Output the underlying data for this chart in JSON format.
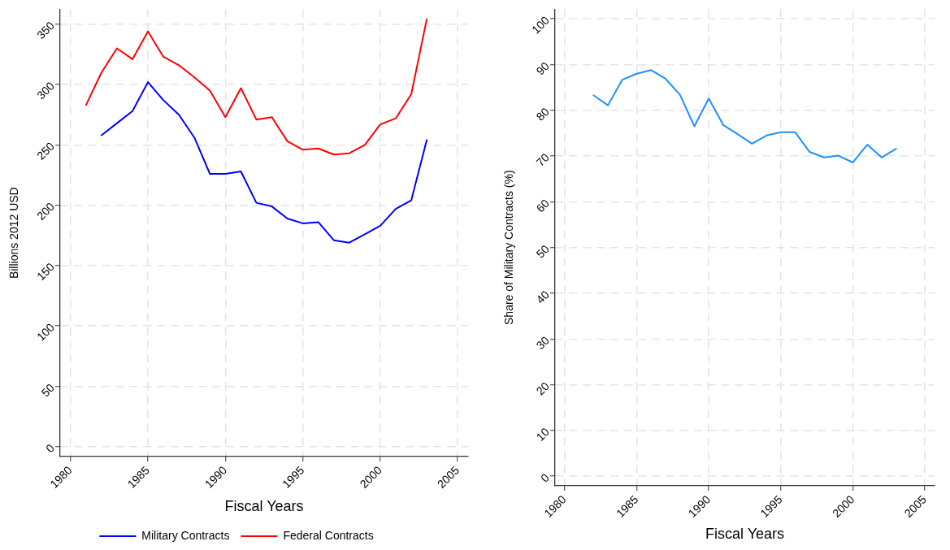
{
  "chart_data": [
    {
      "type": "line",
      "xlabel": "Fiscal Years",
      "ylabel": "Billions 2012 USD",
      "x": [
        1981,
        1982,
        1983,
        1984,
        1985,
        1986,
        1987,
        1988,
        1989,
        1990,
        1991,
        1992,
        1993,
        1994,
        1995,
        1996,
        1997,
        1998,
        1999,
        2000,
        2001,
        2002,
        2003
      ],
      "series": [
        {
          "name": "Military Contracts",
          "color": "#0000ff",
          "values": [
            null,
            258,
            268,
            278,
            302,
            287,
            275,
            256,
            226,
            226,
            228,
            202,
            199,
            189,
            185,
            186,
            171,
            169,
            176,
            183,
            197,
            204,
            254
          ]
        },
        {
          "name": "Federal Contracts",
          "color": "#ff0000",
          "values": [
            283,
            310,
            330,
            321,
            344,
            323,
            316,
            306,
            295,
            273,
            297,
            271,
            273,
            253,
            246,
            247,
            242,
            243,
            250,
            267,
            272,
            292,
            354
          ]
        }
      ],
      "xlim": [
        1979.33,
        2005.67
      ],
      "xticks": [
        1980,
        1985,
        1990,
        1995,
        2000,
        2005
      ],
      "ylim": [
        -8.3,
        362.4
      ],
      "yticks": [
        0,
        50,
        100,
        150,
        200,
        250,
        300,
        350
      ],
      "grid": true,
      "legend": "bottom"
    },
    {
      "type": "line",
      "xlabel": "Fiscal Years",
      "ylabel": "Share of Military Contracts (%)",
      "x": [
        1982,
        1983,
        1984,
        1985,
        1986,
        1987,
        1988,
        1989,
        1990,
        1991,
        1992,
        1993,
        1994,
        1995,
        1996,
        1997,
        1998,
        1999,
        2000,
        2001,
        2002,
        2003
      ],
      "color": "#1e90ff",
      "values": [
        83.3,
        81.1,
        86.7,
        88.0,
        88.8,
        86.9,
        83.4,
        76.5,
        82.6,
        76.8,
        74.8,
        72.7,
        74.5,
        75.2,
        75.2,
        70.9,
        69.7,
        70.1,
        68.6,
        72.5,
        69.7,
        71.6
      ],
      "xlim": [
        1979.33,
        2005.67
      ],
      "xticks": [
        1980,
        1985,
        1990,
        1995,
        2000,
        2005
      ],
      "ylim": [
        -2.1,
        102.1
      ],
      "yticks": [
        0,
        10,
        20,
        30,
        40,
        50,
        60,
        70,
        80,
        90,
        100
      ],
      "grid": true
    }
  ]
}
